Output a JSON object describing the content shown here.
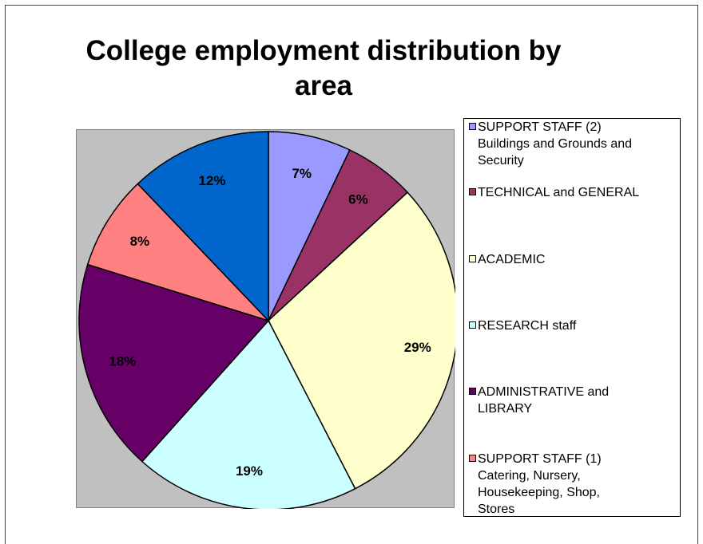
{
  "chart_data": {
    "type": "pie",
    "title": "College employment distribution by\narea",
    "slices": [
      {
        "label": "SUPPORT STAFF (2)\nBuildings and Grounds and\nSecurity",
        "value": 7,
        "value_label": "7%",
        "color": "#9999ff"
      },
      {
        "label": "TECHNICAL and GENERAL",
        "value": 6,
        "value_label": "6%",
        "color": "#993366"
      },
      {
        "label": "ACADEMIC",
        "value": 29,
        "value_label": "29%",
        "color": "#ffffcc"
      },
      {
        "label": "RESEARCH staff",
        "value": 19,
        "value_label": "19%",
        "color": "#ccffff"
      },
      {
        "label": "ADMINISTRATIVE and\nLIBRARY",
        "value": 18,
        "value_label": "18%",
        "color": "#660066"
      },
      {
        "label": "SUPPORT STAFF (1)\nCatering, Nursery,\nHousekeeping, Shop,\nStores",
        "value": 8,
        "value_label": "8%",
        "color": "#ff8080"
      },
      {
        "label": "",
        "value": 12,
        "value_label": "12%",
        "color": "#0066cc"
      }
    ],
    "legend_position": "right",
    "start_angle": "top",
    "direction": "clockwise"
  }
}
